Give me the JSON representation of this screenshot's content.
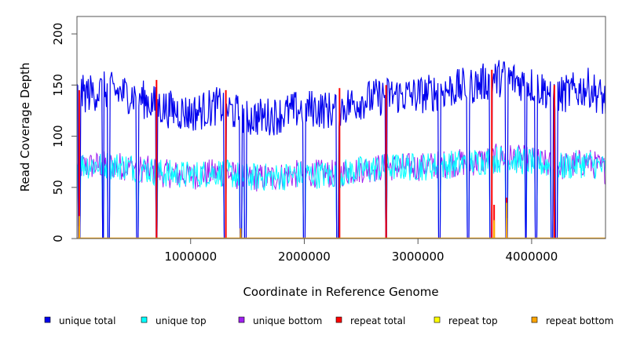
{
  "chart_data": {
    "type": "line",
    "xlabel": "Coordinate in Reference Genome",
    "ylabel": "Read Coverage Depth",
    "xlim": [
      0,
      4650000
    ],
    "ylim": [
      0,
      217
    ],
    "x_ticks": [
      1000000,
      2000000,
      3000000,
      4000000
    ],
    "x_tick_labels": [
      "1000000",
      "2000000",
      "3000000",
      "4000000"
    ],
    "y_ticks": [
      0,
      50,
      100,
      150,
      200
    ],
    "y_tick_labels": [
      "0",
      "50",
      "100",
      "150",
      "200"
    ],
    "grid": false,
    "legend_position": "bottom",
    "series": [
      {
        "name": "unique total",
        "color": "#0000ee",
        "x": [
          0,
          250000,
          500000,
          750000,
          1000000,
          1250000,
          1500000,
          1750000,
          2000000,
          2250000,
          2500000,
          2750000,
          3000000,
          3250000,
          3500000,
          3750000,
          4000000,
          4250000,
          4500000,
          4650000
        ],
        "y": [
          140,
          145,
          140,
          128,
          122,
          130,
          118,
          120,
          128,
          125,
          135,
          140,
          140,
          145,
          150,
          158,
          150,
          140,
          148,
          135
        ]
      },
      {
        "name": "unique top",
        "color": "#00ffff",
        "x": [
          0,
          250000,
          500000,
          750000,
          1000000,
          1250000,
          1500000,
          1750000,
          2000000,
          2250000,
          2500000,
          2750000,
          3000000,
          3250000,
          3500000,
          3750000,
          4000000,
          4250000,
          4500000,
          4650000
        ],
        "y": [
          72,
          72,
          70,
          64,
          62,
          65,
          60,
          60,
          63,
          62,
          67,
          70,
          70,
          72,
          75,
          78,
          75,
          70,
          74,
          68
        ]
      },
      {
        "name": "unique bottom",
        "color": "#a020f0",
        "x": [
          0,
          250000,
          500000,
          750000,
          1000000,
          1250000,
          1500000,
          1750000,
          2000000,
          2250000,
          2500000,
          2750000,
          3000000,
          3250000,
          3500000,
          3750000,
          4000000,
          4250000,
          4500000,
          4650000
        ],
        "y": [
          70,
          72,
          70,
          64,
          61,
          65,
          59,
          60,
          64,
          63,
          68,
          70,
          70,
          73,
          75,
          80,
          76,
          70,
          75,
          67
        ]
      },
      {
        "name": "repeat total",
        "color": "#ff0000",
        "x": [
          20000,
          700000,
          1310000,
          2310000,
          2720000,
          3650000,
          3670000,
          3780000,
          4200000
        ],
        "y": [
          145,
          155,
          145,
          147,
          150,
          165,
          33,
          40,
          150
        ]
      },
      {
        "name": "repeat top",
        "color": "#ffff00",
        "x": [
          20000,
          1440000,
          3670000,
          3780000
        ],
        "y": [
          12,
          5,
          15,
          20
        ]
      },
      {
        "name": "repeat bottom",
        "color": "#ffa500",
        "x": [
          20000,
          1440000,
          3670000,
          3780000
        ],
        "y": [
          22,
          10,
          18,
          35
        ]
      }
    ],
    "coverage_dips_x": [
      20000,
      230000,
      280000,
      530000,
      700000,
      1300000,
      1440000,
      1480000,
      2000000,
      2290000,
      2720000,
      3190000,
      3440000,
      3640000,
      3780000,
      3950000,
      4040000,
      4180000,
      4220000
    ]
  }
}
